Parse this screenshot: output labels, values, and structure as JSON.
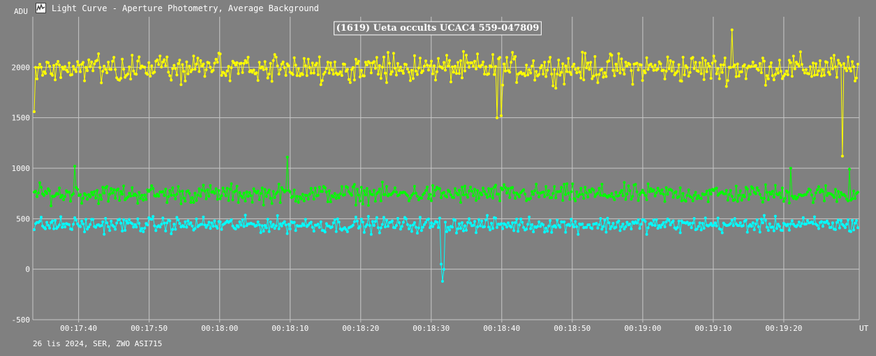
{
  "window": {
    "title": "Light Curve - Aperture Photometry, Average Background",
    "icon": "light-curve-app-icon"
  },
  "footer": {
    "text": "26 lis 2024, SER, ZWO ASI715"
  },
  "colors": {
    "background": "#808080",
    "grid": "#c8c8c8",
    "target": "#ffff00",
    "comparison1": "#00ff00",
    "comparison2": "#00ffff",
    "text": "#ffffff"
  },
  "chart_data": {
    "type": "line",
    "title": "(1619) Ueta occults UCAC4 559-047809",
    "ylabel": "ADU",
    "xlabel": "UT",
    "ylim": [
      -500,
      2500
    ],
    "yticks": [
      -500,
      0,
      500,
      1000,
      1500,
      2000
    ],
    "xlim": [
      "00:17:33.5",
      "00:19:30.7"
    ],
    "xticks": [
      "00:17:40",
      "00:17:50",
      "00:18:00",
      "00:18:10",
      "00:18:20",
      "00:18:30",
      "00:18:40",
      "00:18:50",
      "00:19:00",
      "00:19:10",
      "00:19:20"
    ],
    "grid": true,
    "series": [
      {
        "role": "target",
        "color": "#ffff00",
        "baseline": 1990,
        "noise": 130,
        "events": [
          {
            "time": "00:17:33.7",
            "value": 1560
          },
          {
            "time": "00:18:39.3",
            "value": 1500
          },
          {
            "time": "00:18:39.9",
            "value": 1520
          },
          {
            "time": "00:19:12.6",
            "value": 2370
          },
          {
            "time": "00:19:28.3",
            "value": 1120
          }
        ]
      },
      {
        "role": "comparison-1",
        "color": "#00ff00",
        "baseline": 745,
        "noise": 85,
        "events": [
          {
            "time": "00:17:39.5",
            "value": 1020
          },
          {
            "time": "00:18:09.5",
            "value": 1110
          },
          {
            "time": "00:19:20.9",
            "value": 1000
          },
          {
            "time": "00:19:29.3",
            "value": 990
          }
        ]
      },
      {
        "role": "comparison-2",
        "color": "#00ffff",
        "baseline": 440,
        "noise": 70,
        "events": [
          {
            "time": "00:18:31.5",
            "value": 50
          },
          {
            "time": "00:18:31.7",
            "value": -120
          },
          {
            "time": "00:18:31.9",
            "value": 0
          }
        ]
      }
    ]
  }
}
